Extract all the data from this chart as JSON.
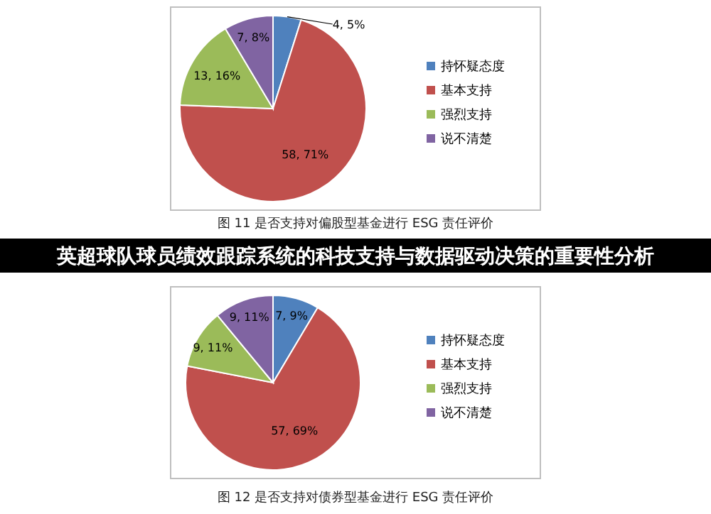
{
  "chart_data": [
    {
      "type": "pie",
      "categories": [
        "持怀疑态度",
        "基本支持",
        "强烈支持",
        "说不清楚"
      ],
      "values": [
        4,
        58,
        13,
        7
      ],
      "colors": [
        "#4f81bd",
        "#c0504d",
        "#9bbb59",
        "#8064a2"
      ],
      "value_labels": [
        "4, 5%",
        "58, 71%",
        "13, 16%",
        "7, 8%"
      ],
      "legend": "right",
      "annotations": [
        "图 11  是否支持对偏股型基金进行 ESG 责任评价",
        "英超球队球员绩效跟踪系统的科技支持与数据驱动决策的重要性分析"
      ]
    },
    {
      "type": "pie",
      "categories": [
        "持怀疑态度",
        "基本支持",
        "强烈支持",
        "说不清楚"
      ],
      "values": [
        7,
        57,
        9,
        9
      ],
      "colors": [
        "#4f81bd",
        "#c0504d",
        "#9bbb59",
        "#8064a2"
      ],
      "value_labels": [
        "7, 9%",
        "57, 69%",
        "9, 11%",
        "9, 11%"
      ],
      "legend": "right",
      "annotations": [
        "图 12  是否支持对债券型基金进行 ESG 责任评价"
      ]
    }
  ]
}
